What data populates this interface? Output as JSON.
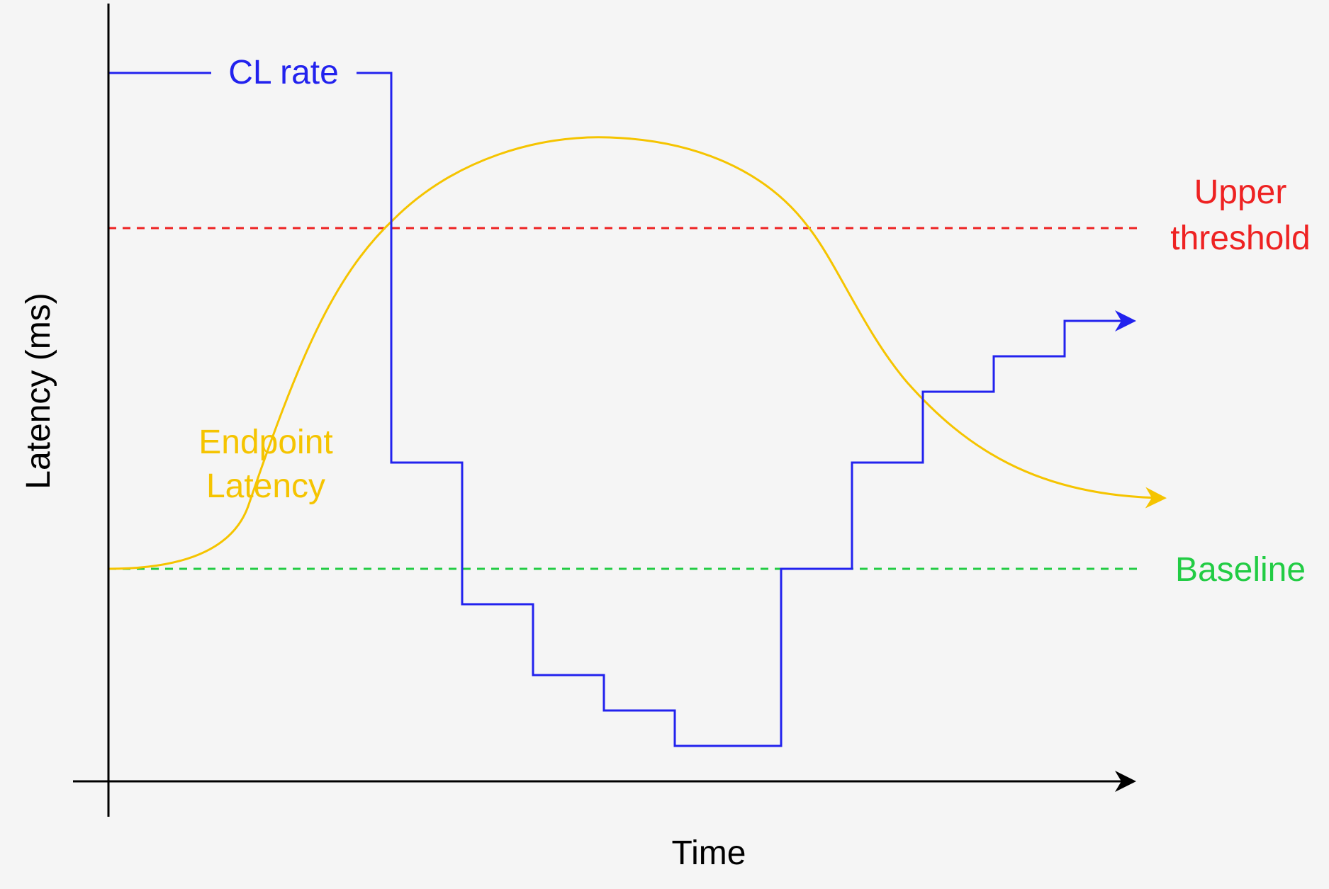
{
  "axes": {
    "x_label": "Time",
    "y_label": "Latency (ms)"
  },
  "series": {
    "cl_rate": {
      "label": "CL rate",
      "color": "#2222ee"
    },
    "endpoint_latency": {
      "label_line1": "Endpoint",
      "label_line2": "Latency",
      "color": "#f5c400"
    }
  },
  "thresholds": {
    "upper": {
      "label_line1": "Upper",
      "label_line2": "threshold",
      "color": "#ee2222",
      "style": "dashed"
    },
    "baseline": {
      "label": "Baseline",
      "color": "#22cc44",
      "style": "dashed"
    }
  },
  "colors": {
    "axis": "#000000",
    "background": "#f5f5f5"
  }
}
